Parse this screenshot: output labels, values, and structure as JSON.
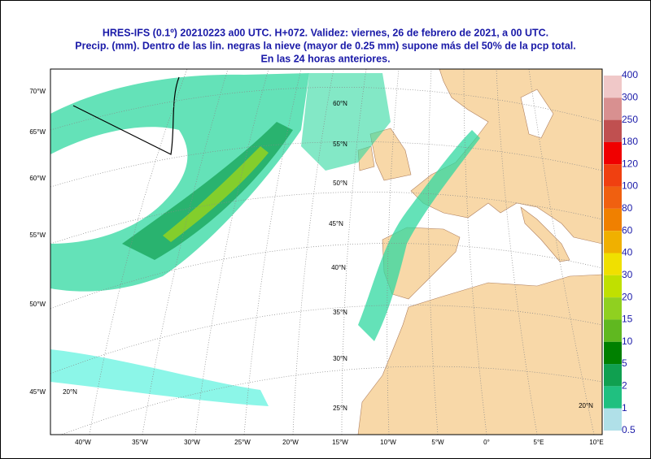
{
  "header": {
    "title_lines": [
      "HRES-IFS (0.1º) 20210223 a00 UTC.  H+072. Validez: viernes, 26 de febrero de 2021,  a  00 UTC.",
      "Precip. (mm). Dentro de las lin. negras la nieve (mayor de 0.25 mm) supone más del 50% de la pcp total.",
      "En las 24 horas anteriores."
    ]
  },
  "map": {
    "left_labels": [
      "70°W",
      "65°W",
      "60°W",
      "55°W",
      "50°W",
      "45°W"
    ],
    "bottom_labels": [
      "40°W",
      "35°W",
      "30°W",
      "25°W",
      "20°W",
      "15°W",
      "10°W",
      "5°W",
      "0°",
      "5°E",
      "10°E"
    ],
    "lat_labels": [
      "60°N",
      "55°N",
      "50°N",
      "45°N",
      "40°N",
      "35°N",
      "30°N",
      "25°N",
      "20°N",
      "20°N"
    ]
  },
  "legend": {
    "labels": [
      "400",
      "300",
      "250",
      "180",
      "120",
      "100",
      "80",
      "60",
      "40",
      "30",
      "20",
      "15",
      "10",
      "5",
      "2",
      "1",
      "0.5"
    ],
    "colors": [
      "#f0c8c8",
      "#d89090",
      "#c05050",
      "#f00000",
      "#f04010",
      "#f06010",
      "#f08000",
      "#f0b000",
      "#f0e000",
      "#c0e000",
      "#90d020",
      "#60b820",
      "#008000",
      "#10a050",
      "#20c080",
      "#40f0d8",
      "#b0e0e8"
    ]
  }
}
